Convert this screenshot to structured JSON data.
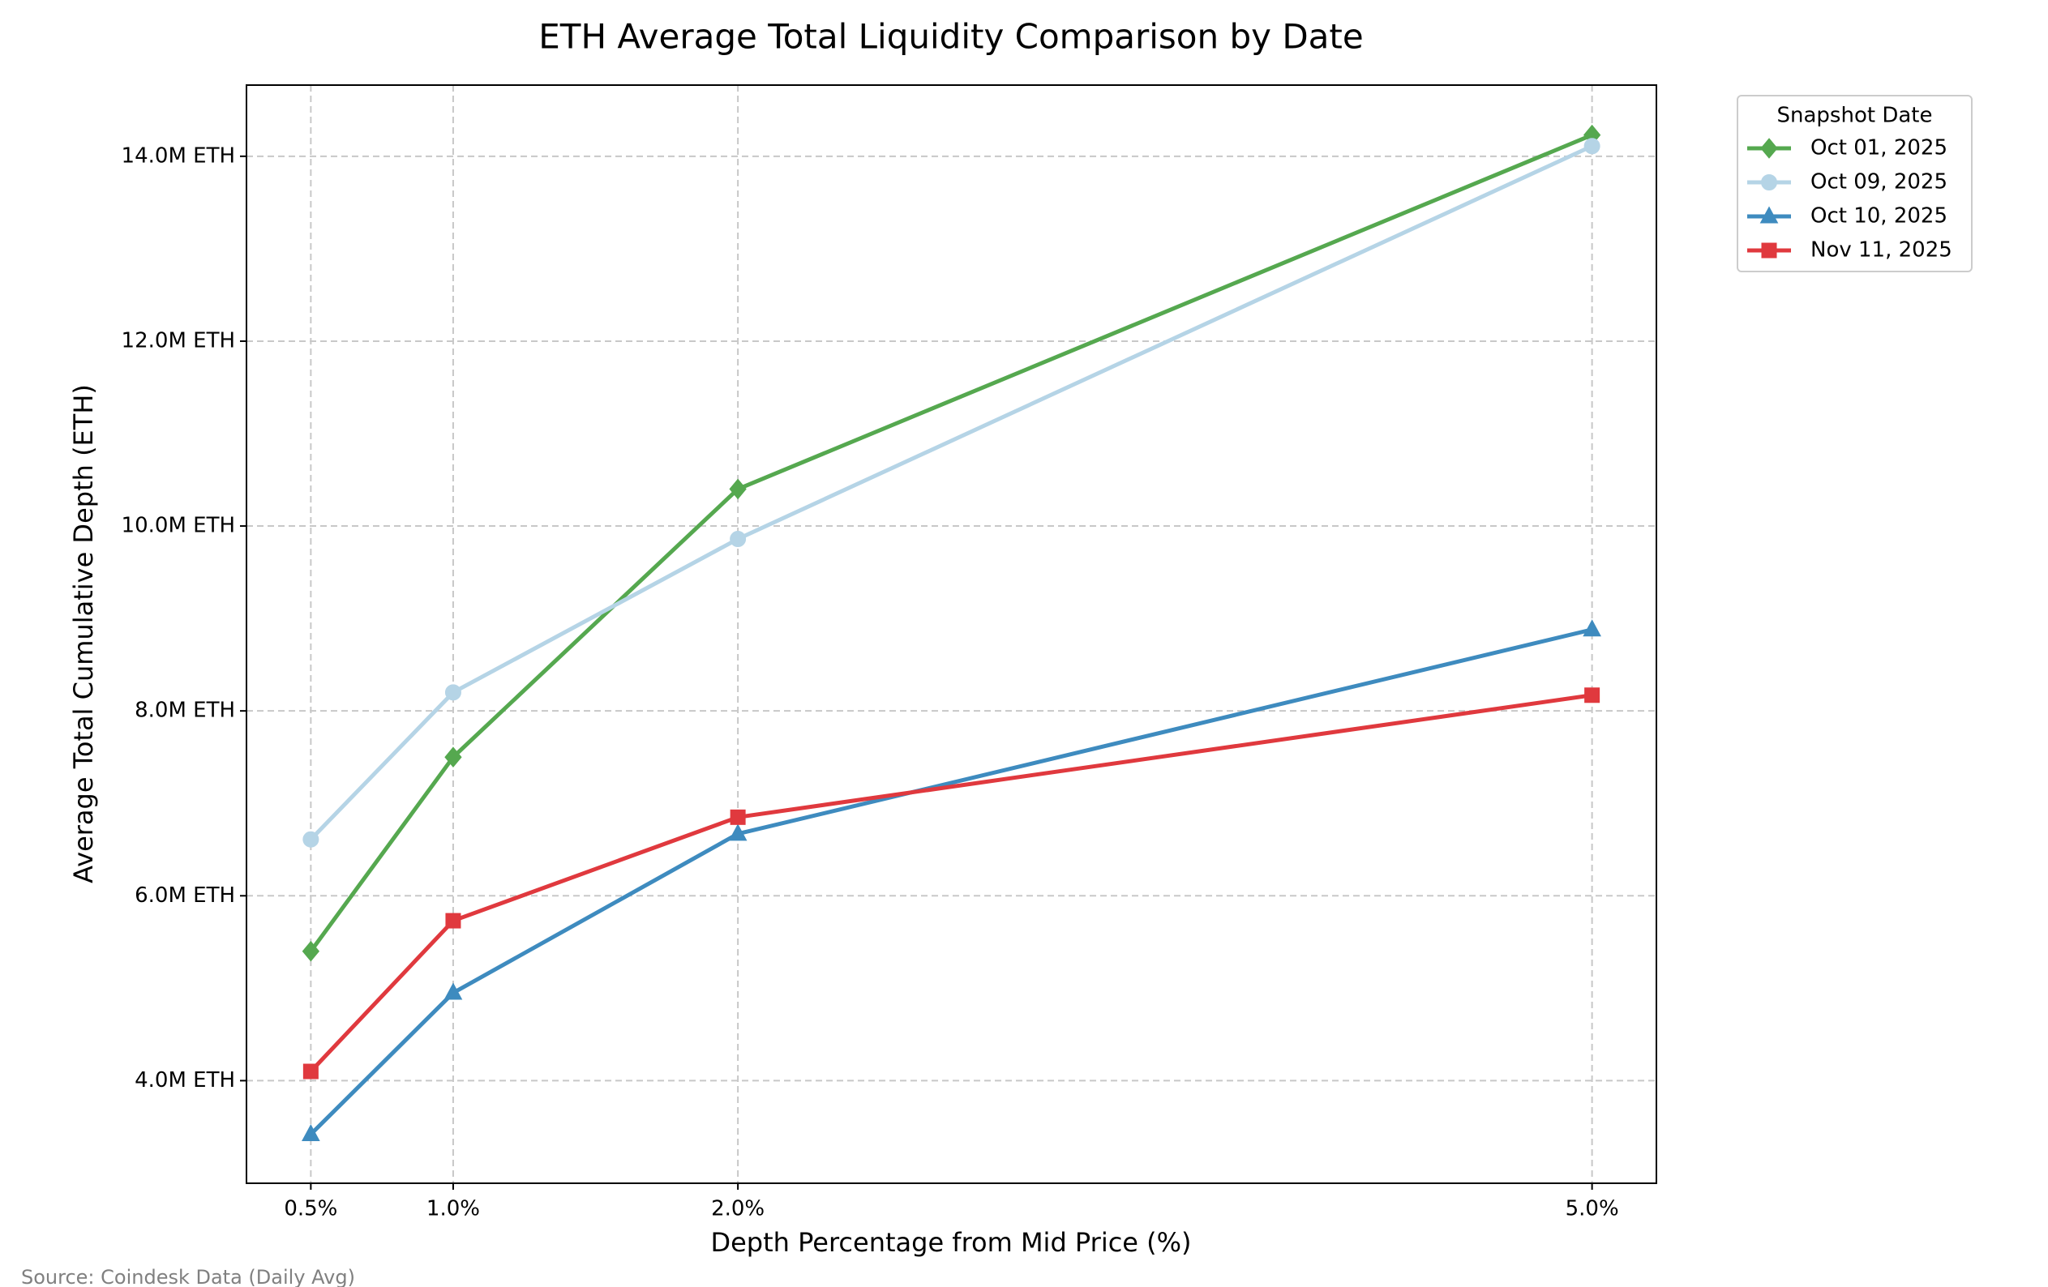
{
  "chart_data": {
    "type": "line",
    "title": "ETH Average Total Liquidity Comparison by Date",
    "x_label": "Depth Percentage from Mid Price (%)",
    "y_label": "Average Total Cumulative Depth (ETH)",
    "source": "Source: Coindesk Data (Daily Avg)",
    "legend_title": "Snapshot Date",
    "legend_position": "outside-upper-right",
    "grid": true,
    "x": [
      0.5,
      1.0,
      2.0,
      5.0
    ],
    "xlim": [
      0.274,
      5.226
    ],
    "xticks": [
      {
        "value": 0.5,
        "label": "0.5%"
      },
      {
        "value": 1.0,
        "label": "1.0%"
      },
      {
        "value": 2.0,
        "label": "2.0%"
      },
      {
        "value": 5.0,
        "label": "5.0%"
      }
    ],
    "ylim": [
      2890000,
      14770000
    ],
    "yticks": [
      {
        "value": 4000000,
        "label": "4.0M ETH"
      },
      {
        "value": 6000000,
        "label": "6.0M ETH"
      },
      {
        "value": 8000000,
        "label": "8.0M ETH"
      },
      {
        "value": 10000000,
        "label": "10.0M ETH"
      },
      {
        "value": 12000000,
        "label": "12.0M ETH"
      },
      {
        "value": 14000000,
        "label": "14.0M ETH"
      }
    ],
    "series": [
      {
        "name": "Oct 01, 2025",
        "color": "#55a84f",
        "marker": "diamond",
        "values": [
          5400000,
          7500000,
          10400000,
          14230000
        ]
      },
      {
        "name": "Oct 09, 2025",
        "color": "#b5d4e6",
        "marker": "circle",
        "values": [
          6610000,
          8200000,
          9860000,
          14110000
        ]
      },
      {
        "name": "Oct 10, 2025",
        "color": "#3e8bbf",
        "marker": "triangle",
        "values": [
          3420000,
          4950000,
          6670000,
          8880000
        ]
      },
      {
        "name": "Nov 11, 2025",
        "color": "#e0393e",
        "marker": "square",
        "values": [
          4100000,
          5730000,
          6850000,
          8170000
        ]
      }
    ]
  }
}
